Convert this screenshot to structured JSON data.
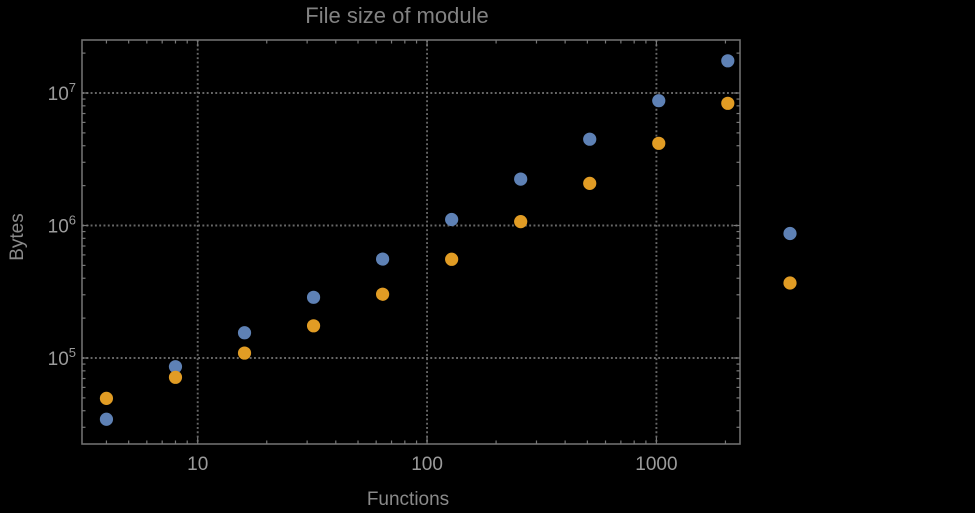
{
  "title": "File size of module",
  "colors": {
    "background": "#000000",
    "frame": "#6f6f6f",
    "grid": "#676767",
    "tick": "#787878",
    "title_text": "#828282",
    "axis_label_text": "#8a8a8a",
    "tick_label_text": "#9b9b9b",
    "series1": "#5e81b5",
    "series2": "#e19c24"
  },
  "chart_data": {
    "type": "scatter",
    "title": "File size of module",
    "xlabel": "Functions",
    "ylabel": "Bytes",
    "x_scale": "log",
    "y_scale": "log",
    "grid": "dotted",
    "frame": true,
    "x_ticks": [
      {
        "value": 10,
        "label": "10"
      },
      {
        "value": 100,
        "label": "100"
      },
      {
        "value": 1000,
        "label": "1000"
      }
    ],
    "y_ticks": [
      {
        "value": 100000,
        "base": "10",
        "exponent": "5"
      },
      {
        "value": 1000000,
        "base": "10",
        "exponent": "6"
      },
      {
        "value": 10000000,
        "base": "10",
        "exponent": "7"
      }
    ],
    "x_range_log10": [
      0.4955,
      3.3645
    ],
    "y_range_log10": [
      4.351,
      7.4
    ],
    "legend_position": "right-outside",
    "series": [
      {
        "name": "series-1-blue",
        "color": "#5e81b5",
        "points": [
          [
            4,
            34500
          ],
          [
            8,
            86000
          ],
          [
            16,
            155000
          ],
          [
            32,
            287000
          ],
          [
            64,
            558000
          ],
          [
            128,
            1110000
          ],
          [
            256,
            2240000
          ],
          [
            512,
            4480000
          ],
          [
            1024,
            8750000
          ],
          [
            2048,
            17500000
          ]
        ]
      },
      {
        "name": "series-2-orange",
        "color": "#e19c24",
        "points": [
          [
            4,
            49600
          ],
          [
            8,
            71500
          ],
          [
            16,
            109000
          ],
          [
            32,
            175000
          ],
          [
            64,
            303000
          ],
          [
            128,
            556000
          ],
          [
            256,
            1070000
          ],
          [
            512,
            2080000
          ],
          [
            1024,
            4170000
          ],
          [
            2048,
            8360000
          ]
        ]
      }
    ],
    "legend_markers": [
      {
        "series": "series-1-blue",
        "color": "#5e81b5",
        "label": ""
      },
      {
        "series": "series-2-orange",
        "color": "#e19c24",
        "label": ""
      }
    ]
  }
}
